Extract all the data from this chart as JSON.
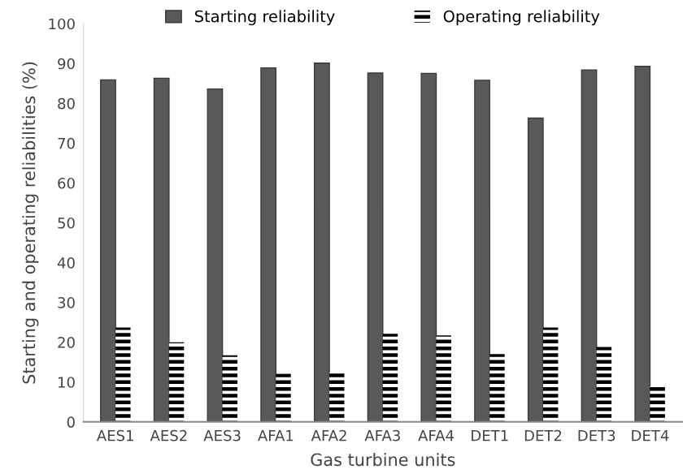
{
  "chart_data": {
    "type": "bar",
    "xlabel": "Gas turbine units",
    "ylabel": "Starting and operating reliabilities (%)",
    "categories": [
      "AES1",
      "AES2",
      "AES3",
      "AFA1",
      "AFA2",
      "AFA3",
      "AFA4",
      "DET1",
      "DET2",
      "DET3",
      "DET4"
    ],
    "series": [
      {
        "name": "Starting reliability",
        "color": "#595959",
        "values": [
          85.9,
          86.3,
          83.6,
          88.9,
          90.1,
          87.6,
          87.5,
          85.8,
          76.3,
          88.4,
          89.3
        ]
      },
      {
        "name": "Operating reliability",
        "color": "#000000",
        "values": [
          23.7,
          20.0,
          16.7,
          12.1,
          12.4,
          22.1,
          21.7,
          17.0,
          23.7,
          18.8,
          8.9
        ]
      }
    ],
    "ylim": [
      0,
      100
    ],
    "yticks": [
      0,
      10,
      20,
      30,
      40,
      50,
      60,
      70,
      80,
      90,
      100
    ],
    "grid": false,
    "legend": "top"
  }
}
